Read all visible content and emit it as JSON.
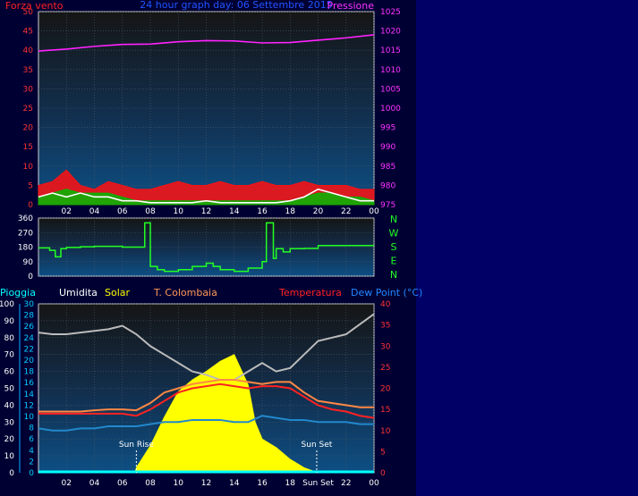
{
  "chart_data": [
    {
      "type": "line",
      "title": "24 hour graph day: 06 Settembre 2015",
      "left_label": "Forza vento",
      "right_label": "Pressione",
      "x_ticks": [
        "02",
        "04",
        "06",
        "08",
        "10",
        "12",
        "14",
        "16",
        "18",
        "20",
        "22",
        "00"
      ],
      "x_range": [
        0,
        24
      ],
      "y_left_ticks": [
        0,
        5,
        10,
        15,
        20,
        25,
        30,
        35,
        40,
        45,
        50
      ],
      "y_left_range": [
        0,
        50
      ],
      "y_right_ticks": [
        975,
        980,
        985,
        990,
        995,
        1000,
        1005,
        1010,
        1015,
        1020,
        1025
      ],
      "y_right_range": [
        975,
        1025
      ],
      "series": [
        {
          "color": "#ff22ff",
          "axis": "right",
          "x": [
            0,
            2,
            4,
            6,
            8,
            10,
            12,
            14,
            16,
            18,
            20,
            22,
            24
          ],
          "values": [
            1014.8,
            1015.3,
            1016.0,
            1016.5,
            1016.6,
            1017.2,
            1017.5,
            1017.4,
            1016.9,
            1017.0,
            1017.6,
            1018.2,
            1019.0
          ]
        },
        {
          "color": "#ff1111",
          "axis": "left",
          "x": [
            0,
            1,
            2,
            3,
            4,
            5,
            6,
            7,
            8,
            9,
            10,
            11,
            12,
            13,
            14,
            15,
            16,
            17,
            18,
            19,
            20,
            21,
            22,
            23,
            24
          ],
          "values": [
            5,
            6,
            9,
            5,
            4,
            6,
            5,
            4,
            4,
            5,
            6,
            5,
            5,
            6,
            5,
            5,
            6,
            5,
            5,
            6,
            5,
            5,
            5,
            4,
            4
          ]
        },
        {
          "color": "#00bb00",
          "axis": "left",
          "x": [
            0,
            1,
            2,
            3,
            4,
            5,
            6,
            7,
            8,
            9,
            10,
            11,
            12,
            13,
            14,
            15,
            16,
            17,
            18,
            19,
            20,
            21,
            22,
            23,
            24
          ],
          "values": [
            2,
            3,
            4,
            3,
            3,
            3,
            2,
            1,
            1,
            1,
            1,
            1,
            1,
            1,
            1,
            1,
            1,
            1,
            1,
            2,
            3,
            3,
            2,
            2,
            1
          ]
        },
        {
          "color": "#ffffff",
          "axis": "left",
          "x": [
            0,
            1,
            2,
            3,
            4,
            5,
            6,
            7,
            8,
            9,
            10,
            11,
            12,
            13,
            14,
            15,
            16,
            17,
            18,
            19,
            20,
            21,
            22,
            23,
            24
          ],
          "values": [
            2,
            3,
            2,
            3,
            2,
            2,
            1,
            1,
            0.5,
            0.5,
            0.5,
            0.5,
            1,
            0.5,
            0.5,
            0.5,
            0.5,
            0.5,
            1,
            2,
            4,
            3,
            2,
            1,
            1
          ]
        }
      ]
    },
    {
      "type": "line",
      "title": "",
      "x_ticks": [
        "02",
        "04",
        "06",
        "08",
        "10",
        "12",
        "14",
        "16",
        "18",
        "20",
        "22",
        "00"
      ],
      "x_range": [
        0,
        24
      ],
      "y_left_ticks": [
        0,
        90,
        180,
        270,
        360
      ],
      "y_left_range": [
        0,
        360
      ],
      "compass": [
        "N",
        "W",
        "S",
        "E",
        "N"
      ],
      "series": [
        {
          "color": "#22ff22",
          "x": [
            0,
            0.8,
            1.2,
            1.6,
            2,
            3,
            4,
            5,
            6,
            7,
            7.5,
            7.6,
            8,
            8.5,
            9,
            9.5,
            10,
            11,
            12,
            12.5,
            13,
            14,
            15,
            16,
            16.3,
            16.8,
            17,
            17.5,
            18,
            19,
            20,
            22,
            24
          ],
          "values": [
            175,
            160,
            120,
            170,
            178,
            182,
            185,
            185,
            180,
            180,
            180,
            330,
            60,
            40,
            30,
            30,
            40,
            60,
            80,
            60,
            40,
            30,
            50,
            90,
            330,
            110,
            170,
            150,
            170,
            172,
            190,
            190,
            190
          ]
        }
      ]
    },
    {
      "type": "line",
      "title": "",
      "legend": [
        "Pioggia",
        "Umidita",
        "Solar",
        "T. Colombaia",
        "Temperatura",
        "Dew Point (°C)"
      ],
      "x_ticks": [
        "02",
        "04",
        "06",
        "08",
        "10",
        "12",
        "14",
        "16",
        "18",
        "Sun Set",
        "22",
        "00"
      ],
      "x_range": [
        0,
        24
      ],
      "y_left_ticks": [
        0,
        10,
        20,
        30,
        40,
        50,
        60,
        70,
        80,
        90,
        100
      ],
      "y_left_range": [
        0,
        100
      ],
      "y_left2_ticks": [
        0,
        2,
        4,
        6,
        8,
        10,
        12,
        14,
        16,
        18,
        20,
        22,
        24,
        26,
        28,
        30
      ],
      "y_left2_range": [
        0,
        30
      ],
      "y_right_ticks": [
        0,
        5,
        10,
        15,
        20,
        25,
        30,
        35,
        40
      ],
      "y_right_range": [
        0,
        40
      ],
      "annotations": [
        {
          "text": "Sun Rise",
          "x": 7.0
        },
        {
          "text": "Sun Set",
          "x": 19.9
        }
      ],
      "series": [
        {
          "name": "Pioggia",
          "color": "#00ffff",
          "axis": "left",
          "x": [
            0,
            24
          ],
          "values": [
            0.5,
            0.5
          ]
        },
        {
          "name": "Umidita",
          "color": "#bbbbbb",
          "axis": "left",
          "x": [
            0,
            1,
            2,
            3,
            4,
            5,
            6,
            7,
            8,
            9,
            10,
            11,
            12,
            13,
            14,
            15,
            16,
            17,
            18,
            19,
            20,
            21,
            22,
            23,
            24
          ],
          "values": [
            83,
            82,
            82,
            83,
            84,
            85,
            87,
            82,
            75,
            70,
            65,
            60,
            58,
            55,
            55,
            60,
            65,
            60,
            62,
            70,
            78,
            80,
            82,
            88,
            94
          ]
        },
        {
          "name": "Solar",
          "color": "#ffff00",
          "axis": "left",
          "x": [
            0,
            6.9,
            7,
            8,
            9,
            10,
            11,
            12,
            13,
            14,
            15,
            15.5,
            16,
            17,
            18,
            19,
            20,
            21,
            24
          ],
          "values": [
            0,
            0,
            3,
            16,
            33,
            48,
            55,
            60,
            66,
            70,
            52,
            30,
            20,
            15,
            8,
            3,
            0,
            0,
            0
          ]
        },
        {
          "name": "T. Colombaia",
          "color": "#ff8844",
          "axis": "right",
          "x": [
            0,
            1,
            2,
            3,
            4,
            5,
            6,
            7,
            8,
            9,
            10,
            11,
            12,
            13,
            14,
            15,
            16,
            17,
            18,
            19,
            20,
            21,
            22,
            23,
            24
          ],
          "values": [
            14.5,
            14.5,
            14.5,
            14.5,
            14.8,
            15,
            15,
            14.8,
            16.5,
            19,
            20,
            21,
            21.5,
            22,
            22,
            21.5,
            21,
            21.5,
            21.5,
            19,
            17,
            16.5,
            16,
            15.5,
            15.5
          ]
        },
        {
          "name": "Temperatura",
          "color": "#ff2222",
          "axis": "right",
          "x": [
            0,
            1,
            2,
            3,
            4,
            5,
            6,
            7,
            8,
            9,
            10,
            11,
            12,
            13,
            14,
            15,
            16,
            17,
            18,
            19,
            20,
            21,
            22,
            23,
            24
          ],
          "values": [
            14,
            14,
            14,
            14,
            14,
            14,
            14,
            13.5,
            15,
            17,
            19,
            20,
            20.5,
            21,
            20.5,
            20,
            20.5,
            20.5,
            20,
            18,
            16,
            15,
            14.5,
            13.5,
            13
          ]
        },
        {
          "name": "Dew Point (°C)",
          "color": "#2288cc",
          "axis": "right",
          "x": [
            0,
            1,
            2,
            3,
            4,
            5,
            6,
            7,
            8,
            9,
            10,
            11,
            12,
            13,
            14,
            15,
            16,
            17,
            18,
            19,
            20,
            21,
            22,
            23,
            24
          ],
          "values": [
            10.5,
            10,
            10,
            10.5,
            10.5,
            11,
            11,
            11,
            11.5,
            12,
            12,
            12.5,
            12.5,
            12.5,
            12,
            12,
            13.5,
            13,
            12.5,
            12.5,
            12,
            12,
            12,
            11.5,
            11.5
          ]
        }
      ]
    }
  ]
}
